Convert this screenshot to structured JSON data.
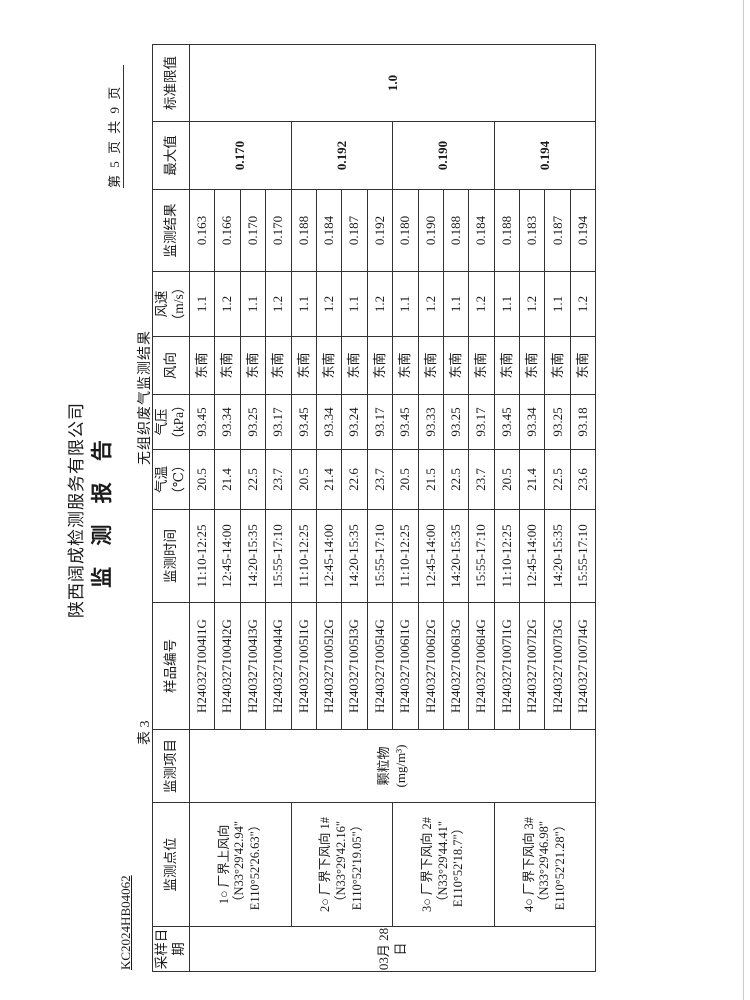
{
  "header": {
    "company": "陕西阔成检测服务有限公司",
    "title": "监 测 报 告",
    "report_no": "KC2024HB04062",
    "page_info": "第 5 页 共 9 页"
  },
  "caption": {
    "table_no": "表 3",
    "table_title": "无组织废气监测结果"
  },
  "columns": [
    "采样日期",
    "监测点位",
    "监测项目",
    "样品编号",
    "监测时间",
    "气温（℃）",
    "气压（kPa）",
    "风向",
    "风速（m/s）",
    "监测结果",
    "最大值",
    "标准限值"
  ],
  "sample_date": "03月 28日",
  "item": "颗粒物 (mg/m³)",
  "standard_limit": "1.0",
  "points": [
    {
      "label": "1○ 厂界上风向 （N33°29'42.94\" E110°52'26.63\"）",
      "max": "0.170",
      "rows": [
        {
          "sample": "H2403271004l1G",
          "time": "11:10-12:25",
          "temp": "20.5",
          "pressure": "93.45",
          "dir": "东南",
          "speed": "1.1",
          "result": "0.163"
        },
        {
          "sample": "H2403271004l2G",
          "time": "12:45-14:00",
          "temp": "21.4",
          "pressure": "93.34",
          "dir": "东南",
          "speed": "1.2",
          "result": "0.166"
        },
        {
          "sample": "H2403271004l3G",
          "time": "14:20-15:35",
          "temp": "22.5",
          "pressure": "93.25",
          "dir": "东南",
          "speed": "1.1",
          "result": "0.170"
        },
        {
          "sample": "H2403271004l4G",
          "time": "15:55-17:10",
          "temp": "23.7",
          "pressure": "93.17",
          "dir": "东南",
          "speed": "1.2",
          "result": "0.170"
        }
      ]
    },
    {
      "label": "2○ 厂界下风向 1# （N33°29'42.16\" E110°52'19.05\"）",
      "max": "0.192",
      "rows": [
        {
          "sample": "H2403271005l1G",
          "time": "11:10-12:25",
          "temp": "20.5",
          "pressure": "93.45",
          "dir": "东南",
          "speed": "1.1",
          "result": "0.188"
        },
        {
          "sample": "H2403271005l2G",
          "time": "12:45-14:00",
          "temp": "21.4",
          "pressure": "93.34",
          "dir": "东南",
          "speed": "1.2",
          "result": "0.184"
        },
        {
          "sample": "H2403271005l3G",
          "time": "14:20-15:35",
          "temp": "22.6",
          "pressure": "93.24",
          "dir": "东南",
          "speed": "1.1",
          "result": "0.187"
        },
        {
          "sample": "H2403271005l4G",
          "time": "15:55-17:10",
          "temp": "23.7",
          "pressure": "93.17",
          "dir": "东南",
          "speed": "1.2",
          "result": "0.192"
        }
      ]
    },
    {
      "label": "3○ 厂界下风向 2# （N33°29'44.41\" E110°52'18.7\"）",
      "max": "0.190",
      "rows": [
        {
          "sample": "H2403271006l1G",
          "time": "11:10-12:25",
          "temp": "20.5",
          "pressure": "93.45",
          "dir": "东南",
          "speed": "1.1",
          "result": "0.180"
        },
        {
          "sample": "H2403271006l2G",
          "time": "12:45-14:00",
          "temp": "21.5",
          "pressure": "93.33",
          "dir": "东南",
          "speed": "1.2",
          "result": "0.190"
        },
        {
          "sample": "H2403271006l3G",
          "time": "14:20-15:35",
          "temp": "22.5",
          "pressure": "93.25",
          "dir": "东南",
          "speed": "1.1",
          "result": "0.188"
        },
        {
          "sample": "H2403271006l4G",
          "time": "15:55-17:10",
          "temp": "23.7",
          "pressure": "93.17",
          "dir": "东南",
          "speed": "1.2",
          "result": "0.184"
        }
      ]
    },
    {
      "label": "4○ 厂界下风向 3# （N33°29'46.98\" E110°52'21.28\"）",
      "max": "0.194",
      "rows": [
        {
          "sample": "H2403271007l1G",
          "time": "11:10-12:25",
          "temp": "20.5",
          "pressure": "93.45",
          "dir": "东南",
          "speed": "1.1",
          "result": "0.188"
        },
        {
          "sample": "H2403271007l2G",
          "time": "12:45-14:00",
          "temp": "21.4",
          "pressure": "93.34",
          "dir": "东南",
          "speed": "1.2",
          "result": "0.183"
        },
        {
          "sample": "H2403271007l3G",
          "time": "14:20-15:35",
          "temp": "22.5",
          "pressure": "93.25",
          "dir": "东南",
          "speed": "1.1",
          "result": "0.187"
        },
        {
          "sample": "H2403271007l4G",
          "time": "15:55-17:10",
          "temp": "23.6",
          "pressure": "93.18",
          "dir": "东南",
          "speed": "1.2",
          "result": "0.194"
        }
      ]
    }
  ]
}
